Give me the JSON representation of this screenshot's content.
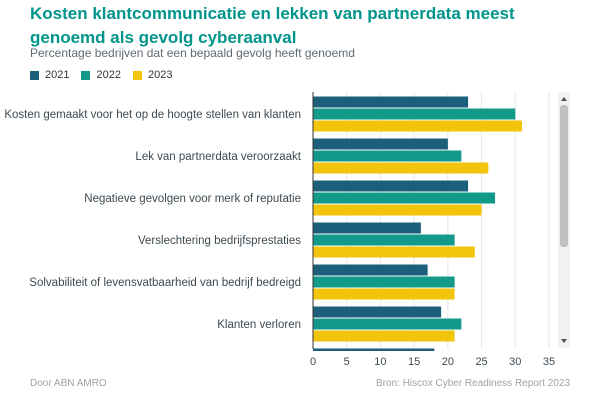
{
  "title": "Kosten klantcommunicatie en lekken van partnerdata meest genoemd als gevolg cyberaanval",
  "subtitle": "Percentage bedrijven dat een bepaald gevolg heeft genoemd",
  "footer": {
    "left": "Door ABN AMRO",
    "right": "Bron: Hiscox Cyber Readiness Report 2023"
  },
  "colors": {
    "2021": "#1b5f7a",
    "2022": "#12998a",
    "2023": "#f2c40c",
    "grid": "#e6e6e6",
    "axis": "#333333",
    "scroll_track": "#f1f1f1",
    "scroll_thumb": "#c1c1c1"
  },
  "chart_data": {
    "type": "bar",
    "orientation": "horizontal",
    "title": "Kosten klantcommunicatie en lekken van partnerdata meest genoemd als gevolg cyberaanval",
    "subtitle": "Percentage bedrijven dat een bepaald gevolg heeft genoemd",
    "legend_position": "top-left",
    "categories": [
      "Kosten gemaakt voor het op de hoogte stellen van klanten",
      "Lek van partnerdata veroorzaakt",
      "Negatieve gevolgen voor merk of reputatie",
      "Verslechtering bedrijfsprestaties",
      "Solvabiliteit of levensvatbaarheid van bedrijf bedreigd",
      "Klanten verloren"
    ],
    "series": [
      {
        "name": "2021",
        "values": [
          23,
          20,
          23,
          16,
          17,
          19
        ]
      },
      {
        "name": "2022",
        "values": [
          30,
          22,
          27,
          21,
          21,
          22
        ]
      },
      {
        "name": "2023",
        "values": [
          31,
          26,
          25,
          24,
          21,
          21
        ]
      }
    ],
    "partial_next_bar": {
      "series": "2021",
      "value": 18
    },
    "x_ticks": [
      0,
      5,
      10,
      15,
      20,
      25,
      30,
      35
    ],
    "xlim": [
      0,
      35
    ],
    "xlabel": "",
    "ylabel": "",
    "grid": true
  }
}
